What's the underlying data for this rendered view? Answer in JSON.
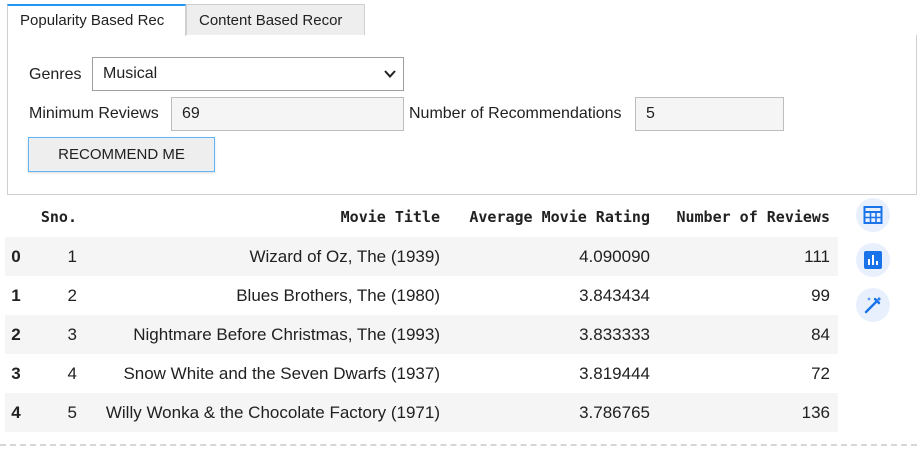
{
  "tabs": [
    {
      "label": "Popularity Based Rec",
      "active": true
    },
    {
      "label": "Content Based Recor",
      "active": false
    }
  ],
  "form": {
    "genres_label": "Genres",
    "genres_value": "Musical",
    "min_reviews_label": "Minimum Reviews",
    "min_reviews_value": "69",
    "num_recs_label": "Number of Recommendations",
    "num_recs_value": "5",
    "button_label": "RECOMMEND ME"
  },
  "table": {
    "headers": {
      "sno": "Sno.",
      "title": "Movie Title",
      "rating": "Average Movie Rating",
      "reviews": "Number of Reviews"
    },
    "rows": [
      {
        "index": "0",
        "sno": "1",
        "title": "Wizard of Oz, The (1939)",
        "rating": "4.090090",
        "reviews": "111"
      },
      {
        "index": "1",
        "sno": "2",
        "title": "Blues Brothers, The (1980)",
        "rating": "3.843434",
        "reviews": "99"
      },
      {
        "index": "2",
        "sno": "3",
        "title": "Nightmare Before Christmas, The (1993)",
        "rating": "3.833333",
        "reviews": "84"
      },
      {
        "index": "3",
        "sno": "4",
        "title": "Snow White and the Seven Dwarfs (1937)",
        "rating": "3.819444",
        "reviews": "72"
      },
      {
        "index": "4",
        "sno": "5",
        "title": "Willy Wonka & the Chocolate Factory (1971)",
        "rating": "3.786765",
        "reviews": "136"
      }
    ]
  },
  "side_icons": [
    "table-icon",
    "bar-chart-icon",
    "magic-wand-icon"
  ],
  "colors": {
    "accent": "#2196f3",
    "icon": "#1a73e8",
    "row_shade": "#f5f5f5"
  }
}
